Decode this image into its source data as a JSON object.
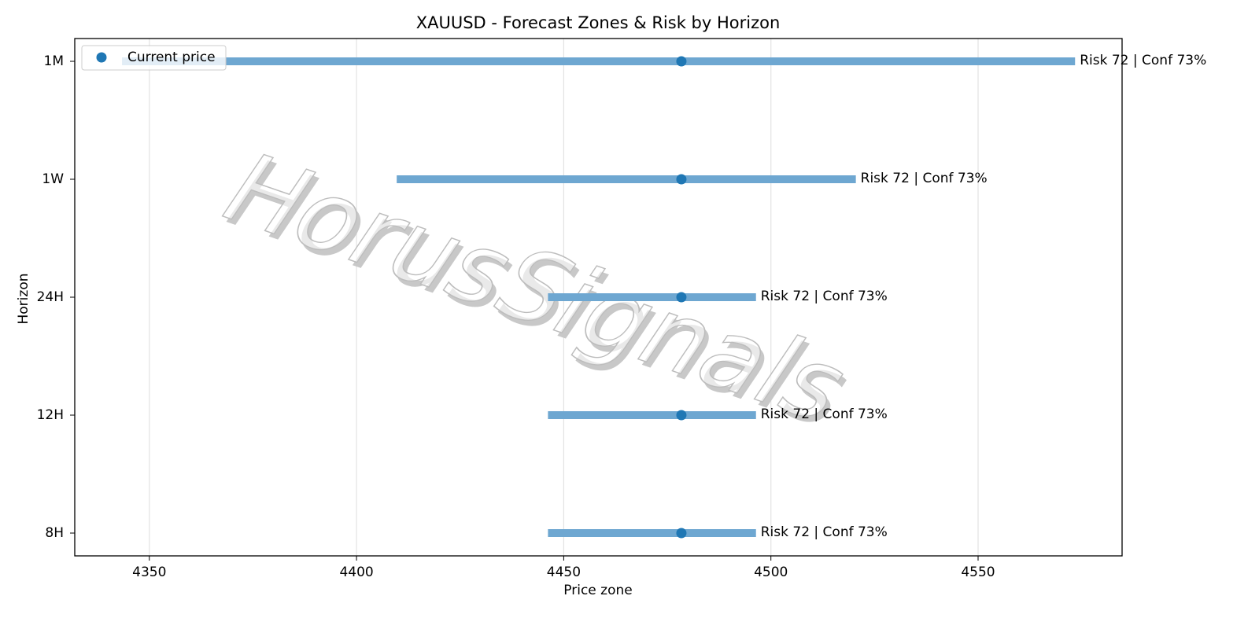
{
  "chart_data": {
    "type": "range",
    "title": "XAUUSD - Forecast Zones & Risk by Horizon",
    "xlabel": "Price zone",
    "ylabel": "Horizon",
    "categories": [
      "1M",
      "1W",
      "24H",
      "12H",
      "8H"
    ],
    "low": [
      4343.4,
      4409.7,
      4446.2,
      4446.2,
      4446.2
    ],
    "high": [
      4573.4,
      4520.5,
      4496.4,
      4496.4,
      4496.4
    ],
    "zone_color": "#6ea7d1",
    "current_price": {
      "name": "Current price",
      "color": "#1f77b4",
      "values": [
        4478.4,
        4478.4,
        4478.4,
        4478.4,
        4478.4
      ]
    },
    "annotations": [
      "Risk 72 | Conf 73%",
      "Risk 72 | Conf 73%",
      "Risk 72 | Conf 73%",
      "Risk 72 | Conf 73%",
      "Risk 72 | Conf 73%"
    ],
    "xlim": [
      4332,
      4584.75
    ],
    "xticks": [
      4350,
      4400,
      4450,
      4500,
      4550
    ],
    "grid": true,
    "legend": "upper left",
    "watermark": "HorusSignals"
  }
}
